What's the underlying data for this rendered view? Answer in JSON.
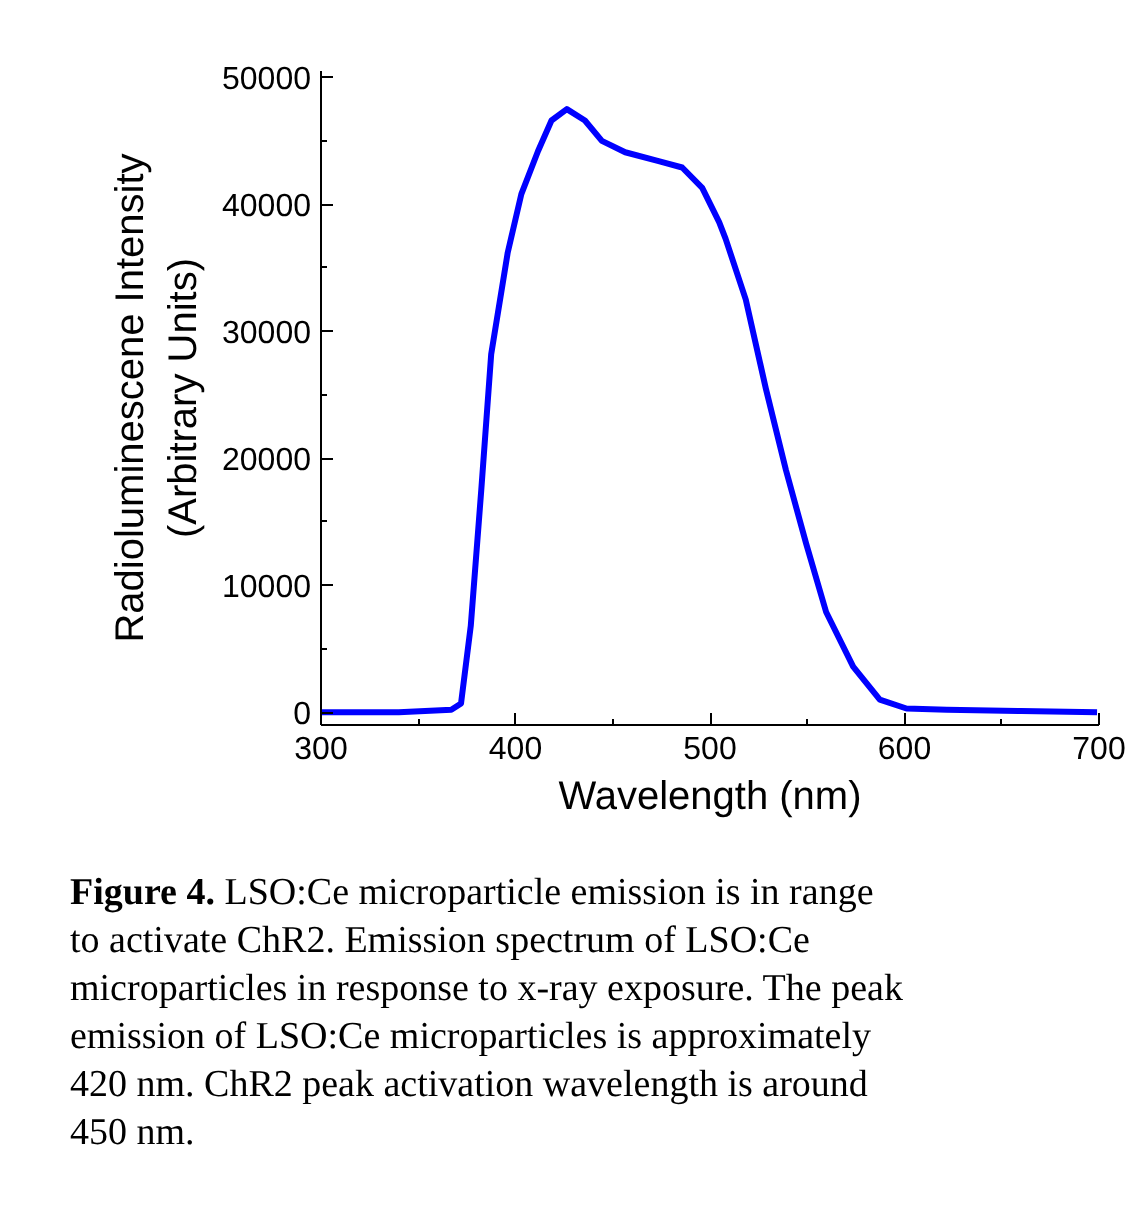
{
  "chart_data": {
    "type": "line",
    "xlabel": "Wavelength (nm)",
    "ylabel": "Radioluminescene Intensity\n(Arbitrary Units)",
    "x": [
      300,
      340,
      367,
      372,
      377,
      382.4,
      387.5,
      396,
      403,
      411.6,
      418.5,
      426.4,
      435.7,
      444.4,
      456.4,
      473.6,
      485.7,
      496,
      504.7,
      508,
      518.4,
      528.7,
      539,
      549.4,
      559.7,
      573.6,
      587.3,
      601,
      621.7,
      660,
      699
    ],
    "series": [
      {
        "color": "#0000ff",
        "values": [
          0,
          0,
          200,
          700,
          6800,
          17500,
          28200,
          36200,
          40800,
          44200,
          46600,
          47500,
          46600,
          45000,
          44100,
          43400,
          42900,
          41300,
          38600,
          37300,
          32500,
          25500,
          19100,
          13300,
          7900,
          3600,
          1000,
          300,
          200,
          100,
          0
        ]
      }
    ],
    "xlim": [
      300,
      700
    ],
    "ylim": [
      -1000,
      50500
    ],
    "xticks": [
      300,
      400,
      500,
      600,
      700
    ],
    "yticks": [
      0,
      10000,
      20000,
      30000,
      40000,
      50000
    ],
    "grid": false,
    "marker": "none",
    "line_style": "solid",
    "annotations": [
      "Figure 4. LSO:Ce microparticle emission is in range to activate ChR2. Emission spectrum of LSO:Ce microparticles in response to x-ray exposure. The peak emission of LSO:Ce microparticles is approximately 420 nm. ChR2 peak activation wavelength is around 450 nm."
    ]
  }
}
